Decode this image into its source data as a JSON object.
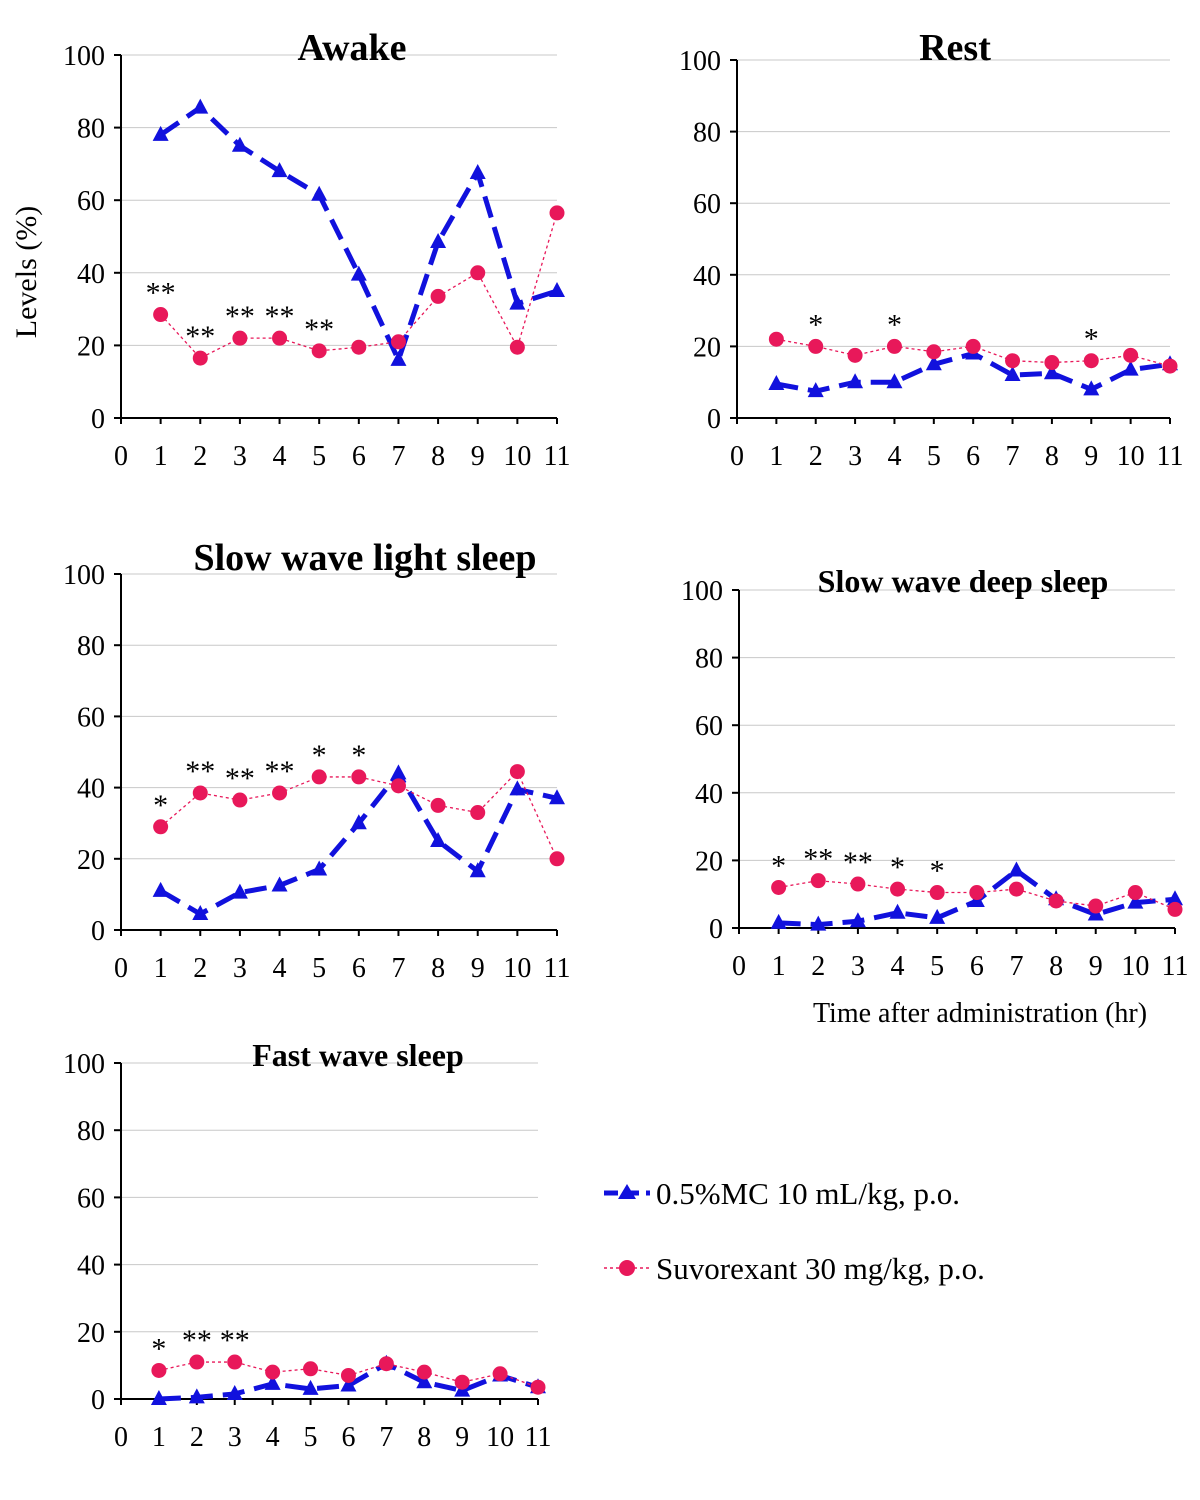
{
  "y_axis_label": "Levels (%)",
  "x_axis_label": "Time after administration (hr)",
  "legend": [
    {
      "label": "0.5%MC 10 mL/kg, p.o.",
      "color": "#1111dd",
      "marker": "triangle",
      "style": "dashed"
    },
    {
      "label": "Suvorexant 30 mg/kg, p.o.",
      "color": "#e8185a",
      "marker": "circle",
      "style": "dotted"
    }
  ],
  "chart_data": [
    {
      "type": "line",
      "title": "Awake",
      "x": [
        1,
        2,
        3,
        4,
        5,
        6,
        7,
        8,
        9,
        10,
        11
      ],
      "x_ticks": [
        "0",
        "1",
        "2",
        "3",
        "4",
        "5",
        "6",
        "7",
        "8",
        "9",
        "10",
        "11"
      ],
      "ylim": [
        0,
        100
      ],
      "y_ticks": [
        "0",
        "20",
        "40",
        "60",
        "80",
        "100"
      ],
      "grid": true,
      "series": [
        {
          "name": "0.5%MC 10 mL/kg, p.o.",
          "values": [
            78,
            85.5,
            75,
            68,
            61.5,
            39.5,
            16,
            48.5,
            67.5,
            31.5,
            35
          ]
        },
        {
          "name": "Suvorexant 30 mg/kg, p.o.",
          "values": [
            28.5,
            16.5,
            22,
            22,
            18.5,
            19.5,
            21,
            33.5,
            40,
            19.5,
            56.5
          ]
        }
      ],
      "annotations": [
        {
          "x": 1,
          "text": "**"
        },
        {
          "x": 2,
          "text": "**"
        },
        {
          "x": 3,
          "text": "**"
        },
        {
          "x": 4,
          "text": "**"
        },
        {
          "x": 5,
          "text": "**"
        }
      ]
    },
    {
      "type": "line",
      "title": "Rest",
      "x": [
        1,
        2,
        3,
        4,
        5,
        6,
        7,
        8,
        9,
        10,
        11
      ],
      "x_ticks": [
        "0",
        "1",
        "2",
        "3",
        "4",
        "5",
        "6",
        "7",
        "8",
        "9",
        "10",
        "11"
      ],
      "ylim": [
        0,
        100
      ],
      "y_ticks": [
        "0",
        "20",
        "40",
        "60",
        "80",
        "100"
      ],
      "grid": true,
      "series": [
        {
          "name": "0.5%MC 10 mL/kg, p.o.",
          "values": [
            9.5,
            7.5,
            10,
            10,
            15,
            18,
            12,
            12.5,
            8,
            13.5,
            15
          ]
        },
        {
          "name": "Suvorexant 30 mg/kg, p.o.",
          "values": [
            22,
            20,
            17.5,
            20,
            18.5,
            20,
            16,
            15.5,
            16,
            17.5,
            14.5
          ]
        }
      ],
      "annotations": [
        {
          "x": 2,
          "text": "*"
        },
        {
          "x": 4,
          "text": "*"
        },
        {
          "x": 9,
          "text": "*"
        }
      ]
    },
    {
      "type": "line",
      "title": "Slow wave light sleep",
      "x": [
        1,
        2,
        3,
        4,
        5,
        6,
        7,
        8,
        9,
        10,
        11
      ],
      "x_ticks": [
        "0",
        "1",
        "2",
        "3",
        "4",
        "5",
        "6",
        "7",
        "8",
        "9",
        "10",
        "11"
      ],
      "ylim": [
        0,
        100
      ],
      "y_ticks": [
        "0",
        "20",
        "40",
        "60",
        "80",
        "100"
      ],
      "grid": true,
      "series": [
        {
          "name": "0.5%MC 10 mL/kg, p.o.",
          "values": [
            11,
            4.5,
            10.5,
            12.5,
            17,
            30,
            44,
            25,
            16.5,
            39.5,
            37
          ]
        },
        {
          "name": "Suvorexant 30 mg/kg, p.o.",
          "values": [
            29,
            38.5,
            36.5,
            38.5,
            43,
            43,
            40.5,
            35,
            33,
            44.5,
            20
          ]
        }
      ],
      "annotations": [
        {
          "x": 1,
          "text": "*"
        },
        {
          "x": 2,
          "text": "**"
        },
        {
          "x": 3,
          "text": "**"
        },
        {
          "x": 4,
          "text": "**"
        },
        {
          "x": 5,
          "text": "*"
        },
        {
          "x": 6,
          "text": "*"
        }
      ]
    },
    {
      "type": "line",
      "title": "Slow wave deep sleep",
      "x": [
        1,
        2,
        3,
        4,
        5,
        6,
        7,
        8,
        9,
        10,
        11
      ],
      "x_ticks": [
        "0",
        "1",
        "2",
        "3",
        "4",
        "5",
        "6",
        "7",
        "8",
        "9",
        "10",
        "11"
      ],
      "ylim": [
        0,
        100
      ],
      "y_ticks": [
        "0",
        "20",
        "40",
        "60",
        "80",
        "100"
      ],
      "grid": true,
      "series": [
        {
          "name": "0.5%MC 10 mL/kg, p.o.",
          "values": [
            1.5,
            1,
            2,
            4.5,
            3,
            8,
            17,
            8.5,
            4,
            7.5,
            8.5
          ]
        },
        {
          "name": "Suvorexant 30 mg/kg, p.o.",
          "values": [
            12,
            14,
            13,
            11.5,
            10.5,
            10.5,
            11.5,
            8,
            6.5,
            10.5,
            5.5
          ]
        }
      ],
      "annotations": [
        {
          "x": 1,
          "text": "*"
        },
        {
          "x": 2,
          "text": "**"
        },
        {
          "x": 3,
          "text": "**"
        },
        {
          "x": 4,
          "text": "*"
        },
        {
          "x": 5,
          "text": "*"
        }
      ]
    },
    {
      "type": "line",
      "title": "Fast wave sleep",
      "x": [
        1,
        2,
        3,
        4,
        5,
        6,
        7,
        8,
        9,
        10,
        11
      ],
      "x_ticks": [
        "0",
        "1",
        "2",
        "3",
        "4",
        "5",
        "6",
        "7",
        "8",
        "9",
        "10",
        "11"
      ],
      "ylim": [
        0,
        100
      ],
      "y_ticks": [
        "0",
        "20",
        "40",
        "60",
        "80",
        "100"
      ],
      "grid": true,
      "series": [
        {
          "name": "0.5%MC 10 mL/kg, p.o.",
          "values": [
            0,
            0.5,
            1.5,
            4.5,
            3,
            4,
            10.5,
            5,
            2.5,
            7,
            3.5
          ]
        },
        {
          "name": "Suvorexant 30 mg/kg, p.o.",
          "values": [
            8.5,
            11,
            11,
            8,
            9,
            7,
            10.5,
            8,
            5,
            7.5,
            3.5
          ]
        }
      ],
      "annotations": [
        {
          "x": 1,
          "text": "*"
        },
        {
          "x": 2,
          "text": "**"
        },
        {
          "x": 3,
          "text": "**"
        }
      ]
    }
  ]
}
